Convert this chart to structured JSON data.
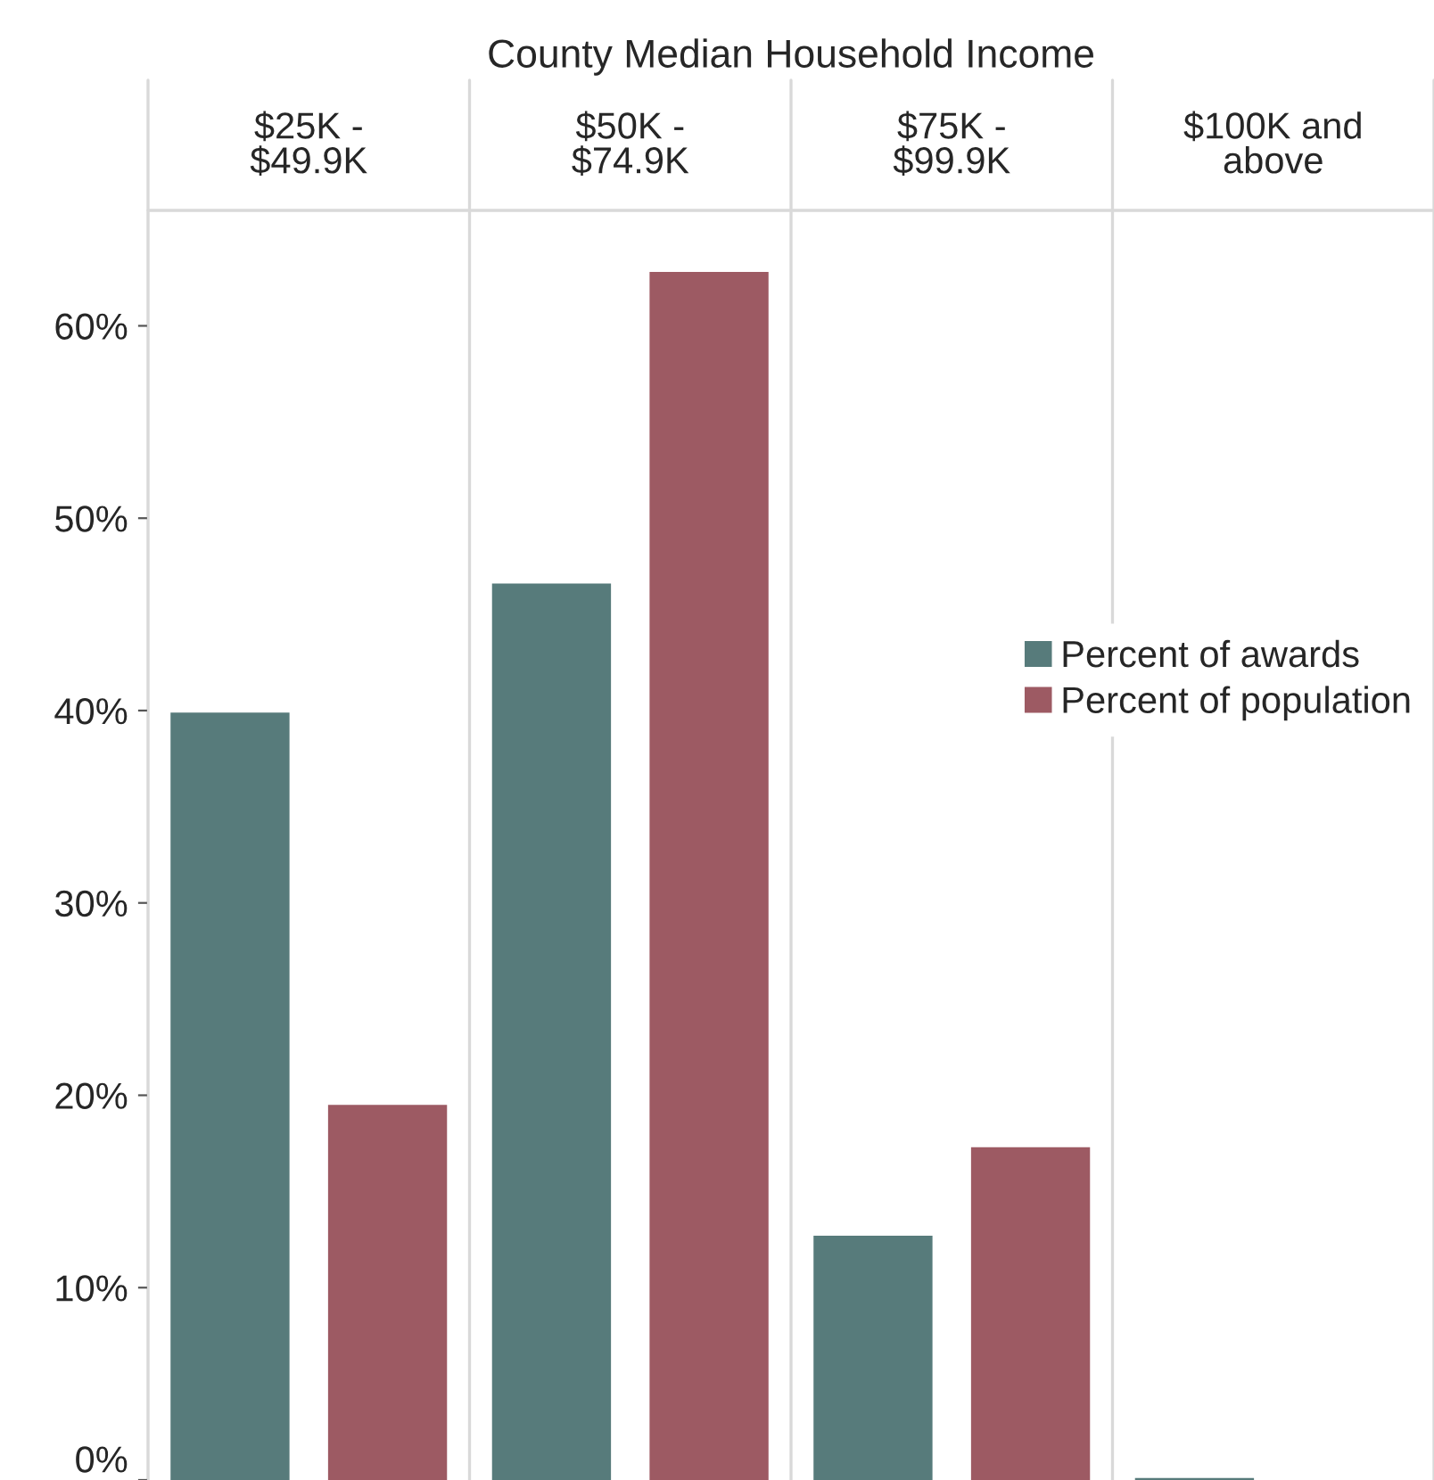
{
  "chart_data": {
    "type": "bar",
    "title": "County Median Household Income",
    "categories": [
      "$25K -\n$49.9K",
      "$50K -\n$74.9K",
      "$75K -\n$99.9K",
      "$100K and\nabove"
    ],
    "series": [
      {
        "name": "Percent of awards",
        "color": "#577b7b",
        "values": [
          39.9,
          46.6,
          12.7,
          0.1
        ]
      },
      {
        "name": "Percent of population",
        "color": "#9d5a63",
        "values": [
          19.5,
          62.8,
          17.3,
          0
        ]
      }
    ],
    "ylim": [
      0,
      66
    ],
    "yticks": [
      {
        "value": 0,
        "label": "0%"
      },
      {
        "value": 10,
        "label": "10%"
      },
      {
        "value": 20,
        "label": "20%"
      },
      {
        "value": 30,
        "label": "30%"
      },
      {
        "value": 40,
        "label": "40%"
      },
      {
        "value": 50,
        "label": "50%"
      },
      {
        "value": 60,
        "label": "60%"
      }
    ],
    "grid": false,
    "legend": "right"
  }
}
